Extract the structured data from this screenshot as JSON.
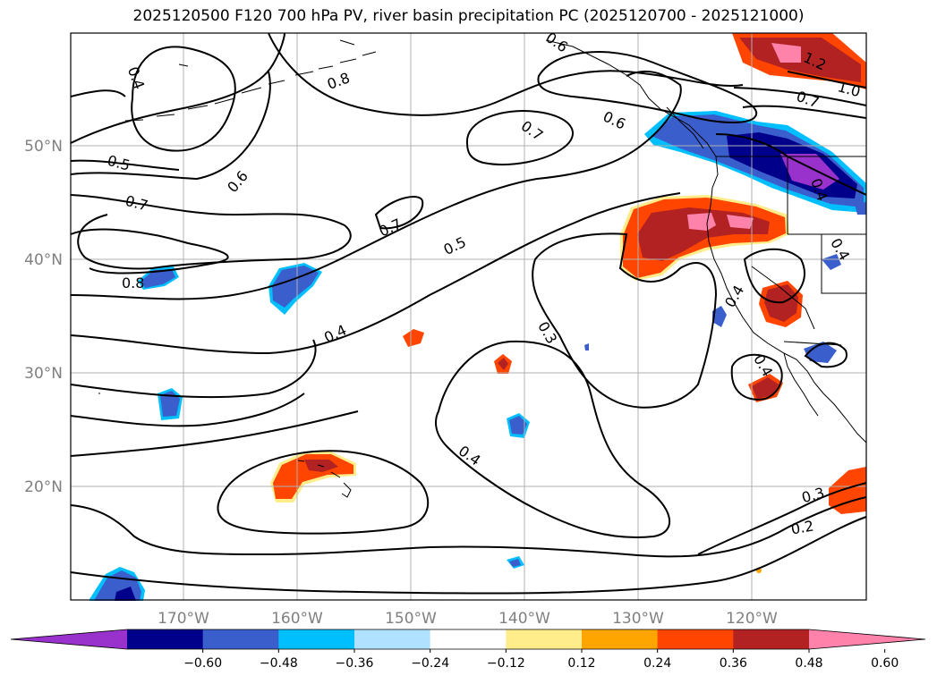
{
  "title": "2025120500 F120 700 hPa PV, river basin precipitation PC (2025120700 - 2025121000)",
  "map": {
    "projection": "lat-lon",
    "lon_range": [
      "180°",
      "110°W"
    ],
    "lat_range": [
      "10°N",
      "60°N"
    ],
    "gridlines": true
  },
  "axis": {
    "lat_ticks": [
      "50°N",
      "40°N",
      "30°N",
      "20°N"
    ],
    "lon_ticks": [
      "170°W",
      "160°W",
      "150°W",
      "140°W",
      "130°W",
      "120°W"
    ]
  },
  "contour_labels": [
    {
      "text": "0.4"
    },
    {
      "text": "0.8"
    },
    {
      "text": "0.6"
    },
    {
      "text": "0.6"
    },
    {
      "text": "0.5"
    },
    {
      "text": "0.6"
    },
    {
      "text": "0.7"
    },
    {
      "text": "0.7"
    },
    {
      "text": "0.7"
    },
    {
      "text": "0.5"
    },
    {
      "text": "0.8"
    },
    {
      "text": "0.4"
    },
    {
      "text": "0.3"
    },
    {
      "text": "0.4"
    },
    {
      "text": "0.4"
    },
    {
      "text": "0.4"
    },
    {
      "text": "0.4"
    },
    {
      "text": "1.2"
    },
    {
      "text": "1.0"
    },
    {
      "text": "0.7"
    },
    {
      "text": "0.3"
    },
    {
      "text": "0.2"
    },
    {
      "text": "0.4"
    }
  ],
  "colorbar": {
    "colors": [
      "#9932cc",
      "#00008b",
      "#3a5fcd",
      "#00bfff",
      "#b0e2ff",
      "#ffffff",
      "#ffec8b",
      "#ffa500",
      "#ff4500",
      "#b22222",
      "#ff82ab"
    ],
    "tick_labels": [
      "−0.60",
      "−0.48",
      "−0.36",
      "−0.24",
      "−0.12",
      "0.12",
      "0.24",
      "0.36",
      "0.48",
      "0.60"
    ],
    "extend": "both"
  }
}
